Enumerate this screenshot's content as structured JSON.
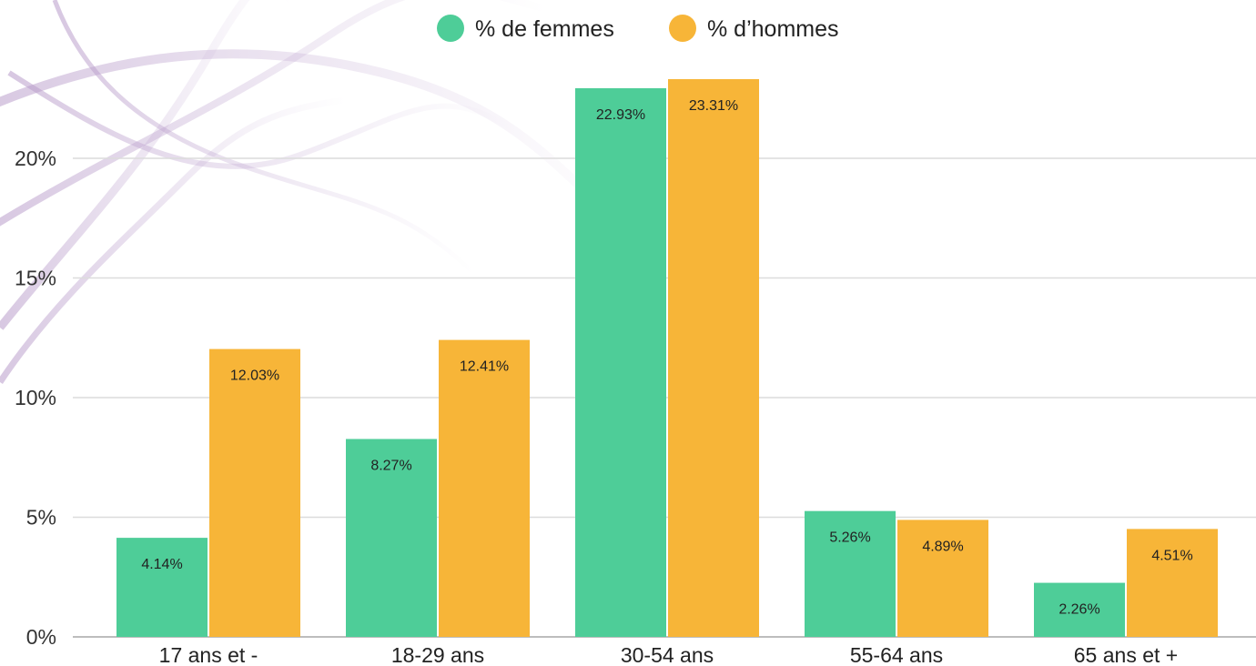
{
  "chart_data": {
    "type": "bar",
    "title": "",
    "xlabel": "",
    "ylabel": "",
    "categories": [
      "17 ans et -",
      "18-29 ans",
      "30-54 ans",
      "55-64 ans",
      "65 ans et +"
    ],
    "series": [
      {
        "name": "% de femmes",
        "color": "#4ecd98",
        "values": [
          4.14,
          8.27,
          22.93,
          5.26,
          2.26
        ],
        "labels": [
          "4.14%",
          "8.27%",
          "22.93%",
          "5.26%",
          "2.26%"
        ]
      },
      {
        "name": "% d’hommes",
        "color": "#f7b538",
        "values": [
          12.03,
          12.41,
          23.31,
          4.89,
          4.51
        ],
        "labels": [
          "12.03%",
          "12.41%",
          "23.31%",
          "4.89%",
          "4.51%"
        ]
      }
    ],
    "yticks": [
      0,
      5,
      10,
      15,
      20
    ],
    "ytick_labels": [
      "0%",
      "5%",
      "10%",
      "15%",
      "20%"
    ],
    "ylim": [
      0,
      25
    ],
    "grid": true,
    "legend_position": "top-center"
  }
}
